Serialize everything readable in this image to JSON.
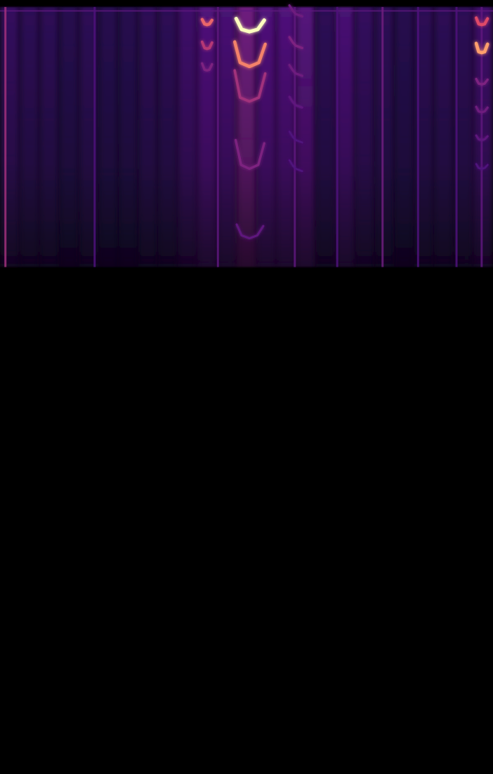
{
  "chart_data": {
    "type": "spectrogram",
    "xlim": [
      0,
      100
    ],
    "ylim": [
      0,
      100
    ],
    "zlim": [
      0,
      1
    ],
    "tick_labels": false,
    "grid": false,
    "noise": {
      "bins": [
        0,
        4,
        8,
        12,
        16,
        20,
        24,
        28,
        32,
        36,
        40,
        44,
        48,
        52,
        56,
        60,
        64,
        68,
        72,
        76,
        80,
        84,
        88,
        92,
        96,
        100
      ],
      "values": [
        0.22,
        0.2,
        0.2,
        0.18,
        0.2,
        0.18,
        0.18,
        0.2,
        0.2,
        0.25,
        0.3,
        0.28,
        0.4,
        0.3,
        0.3,
        0.32,
        0.2,
        0.28,
        0.22,
        0.2,
        0.18,
        0.2,
        0.2,
        0.2,
        0.25
      ],
      "band": [
        65.5,
        99.1
      ]
    },
    "streaks": {
      "x": [
        1.1,
        19.2,
        44.2,
        59.8,
        68.4,
        77.6,
        84.8,
        92.6,
        97.7
      ],
      "values": [
        0.55,
        0.3,
        0.35,
        0.35,
        0.3,
        0.4,
        0.3,
        0.3,
        0.35
      ]
    },
    "top_line": {
      "y": 98.6,
      "value": 0.35
    },
    "contours": [
      {
        "x": [
          47.9,
          49.0,
          50.6,
          52.3,
          53.6
        ],
        "y": [
          97.6,
          96.2,
          95.9,
          96.2,
          97.4
        ],
        "value": 1.0
      },
      {
        "x": [
          47.6,
          48.7,
          50.6,
          52.5,
          53.8
        ],
        "y": [
          94.6,
          91.9,
          91.4,
          91.9,
          94.3
        ],
        "value": 0.8
      },
      {
        "x": [
          47.6,
          48.7,
          50.6,
          52.5,
          53.8
        ],
        "y": [
          90.9,
          87.4,
          86.9,
          87.4,
          90.5
        ],
        "value": 0.55
      },
      {
        "x": [
          47.8,
          48.9,
          50.6,
          52.4,
          53.6
        ],
        "y": [
          81.9,
          78.7,
          78.2,
          78.7,
          81.5
        ],
        "value": 0.45
      },
      {
        "x": [
          48.0,
          49.0,
          50.6,
          52.2,
          53.4
        ],
        "y": [
          71.0,
          69.6,
          69.2,
          69.6,
          70.8
        ],
        "value": 0.35
      },
      {
        "x": [
          41.0,
          41.5,
          42.0,
          42.5,
          43.0
        ],
        "y": [
          97.5,
          96.9,
          96.8,
          96.9,
          97.4
        ],
        "value": 0.75
      },
      {
        "x": [
          41.0,
          41.5,
          42.0,
          42.5,
          43.0
        ],
        "y": [
          94.6,
          93.8,
          93.7,
          93.8,
          94.5
        ],
        "value": 0.6
      },
      {
        "x": [
          41.0,
          41.5,
          42.0,
          42.5,
          43.0
        ],
        "y": [
          91.8,
          91.0,
          90.9,
          91.0,
          91.7
        ],
        "value": 0.45
      },
      {
        "x": [
          96.6,
          97.1,
          97.7,
          98.3,
          98.9
        ],
        "y": [
          97.7,
          96.9,
          96.8,
          96.9,
          97.6
        ],
        "value": 0.7
      },
      {
        "x": [
          96.6,
          97.1,
          97.7,
          98.3,
          98.9
        ],
        "y": [
          94.4,
          93.3,
          93.2,
          93.3,
          94.3
        ],
        "value": 0.85
      },
      {
        "x": [
          96.6,
          97.1,
          97.7,
          98.3,
          98.9
        ],
        "y": [
          89.8,
          89.2,
          89.1,
          89.2,
          89.7
        ],
        "value": 0.45
      },
      {
        "x": [
          96.6,
          97.1,
          97.7,
          98.3,
          98.9
        ],
        "y": [
          86.2,
          85.6,
          85.5,
          85.6,
          86.1
        ],
        "value": 0.4
      },
      {
        "x": [
          96.6,
          97.1,
          97.7,
          98.3,
          98.9
        ],
        "y": [
          82.5,
          82.0,
          81.9,
          82.0,
          82.4
        ],
        "value": 0.35
      },
      {
        "x": [
          96.6,
          97.1,
          97.7,
          98.3,
          98.9
        ],
        "y": [
          78.8,
          78.3,
          78.2,
          78.3,
          78.7
        ],
        "value": 0.3
      },
      {
        "x": [
          58.7,
          59.4,
          60.0,
          61.3
        ],
        "y": [
          99.3,
          98.6,
          98.2,
          97.9
        ],
        "value": 0.4
      },
      {
        "x": [
          58.7,
          59.4,
          60.0,
          61.3
        ],
        "y": [
          95.2,
          94.5,
          94.1,
          93.8
        ],
        "value": 0.45
      },
      {
        "x": [
          58.7,
          59.4,
          60.0,
          61.3
        ],
        "y": [
          91.6,
          90.9,
          90.5,
          90.2
        ],
        "value": 0.4
      },
      {
        "x": [
          58.7,
          59.4,
          60.0,
          61.3
        ],
        "y": [
          87.5,
          86.8,
          86.4,
          86.1
        ],
        "value": 0.35
      },
      {
        "x": [
          58.7,
          59.4,
          60.0,
          61.3
        ],
        "y": [
          83.0,
          82.3,
          81.9,
          81.6
        ],
        "value": 0.3
      },
      {
        "x": [
          58.7,
          59.4,
          60.0,
          61.3
        ],
        "y": [
          79.3,
          78.6,
          78.2,
          77.9
        ],
        "value": 0.3
      }
    ]
  }
}
